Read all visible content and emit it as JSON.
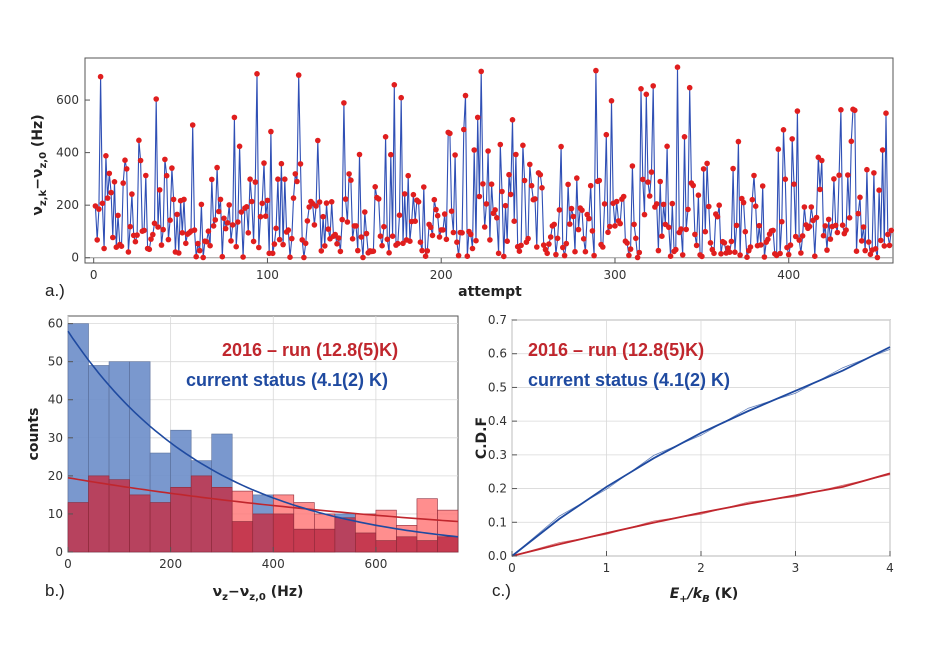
{
  "colors": {
    "series_2016": "#c0262d",
    "series_current": "#1f4aa0",
    "hist_2016_fill": "#c2334a",
    "hist_2016_light": "#ff7a7a",
    "hist_current_fill": "#6f8fca",
    "dot": "#e01e1e",
    "grid": "#d8d8d8"
  },
  "chart_data": [
    {
      "id": "a",
      "panel_label": "a.)",
      "type": "line",
      "series_name": "v_z,k - v_z,0 per attempt",
      "xlabel": "attempt",
      "ylabel": "ν_{z,k}−ν_{z,0} (Hz)",
      "xlim": [
        -5,
        460
      ],
      "ylim": [
        -20,
        760
      ],
      "xticks": [
        "0",
        "100",
        "200",
        "300",
        "400"
      ],
      "yticks": [
        "0",
        "200",
        "400",
        "600"
      ],
      "n_points": 459,
      "y_max_observed": 730,
      "y_min_observed": 0
    },
    {
      "id": "b",
      "panel_label": "b.)",
      "type": "bar",
      "xlabel": "ν_z−ν_{z,0} (Hz)",
      "ylabel": "counts",
      "xlim": [
        0,
        760
      ],
      "ylim": [
        0,
        62
      ],
      "xticks": [
        "0",
        "200",
        "400",
        "600"
      ],
      "yticks": [
        "0",
        "10",
        "20",
        "30",
        "40",
        "50",
        "60"
      ],
      "bin_width": 40,
      "bin_starts": [
        0,
        40,
        80,
        120,
        160,
        200,
        240,
        280,
        320,
        360,
        400,
        440,
        480,
        520,
        560,
        600,
        640,
        680,
        720
      ],
      "series": [
        {
          "name": "2016 – run (12.8(5)K)",
          "values": [
            13,
            20,
            19,
            15,
            13,
            17,
            20,
            17,
            16,
            10,
            15,
            13,
            10,
            9,
            10,
            11,
            7,
            14,
            11
          ]
        },
        {
          "name": "current status (4.1(2) K)",
          "values": [
            60,
            49,
            50,
            50,
            26,
            32,
            24,
            31,
            8,
            15,
            10,
            6,
            6,
            10,
            5,
            3,
            4,
            3,
            4
          ]
        }
      ],
      "fits": [
        {
          "name": "2016 – run (12.8(5)K)",
          "start": 19.5,
          "end": 8,
          "x_end": 760
        },
        {
          "name": "current status (4.1(2) K)",
          "start": 58,
          "end": 4,
          "x_end": 760
        }
      ],
      "legend": [
        "2016 – run (12.8(5)K)",
        "current status (4.1(2) K)"
      ]
    },
    {
      "id": "c",
      "panel_label": "c.)",
      "type": "line",
      "xlabel": "E₊/k_B (K)",
      "ylabel": "C.D.F",
      "xlim": [
        0,
        4
      ],
      "ylim": [
        0,
        0.7
      ],
      "xticks": [
        "0",
        "1",
        "2",
        "3",
        "4"
      ],
      "yticks": [
        "0.0",
        "0.1",
        "0.2",
        "0.3",
        "0.4",
        "0.5",
        "0.6",
        "0.7"
      ],
      "series": [
        {
          "name": "2016 – run (12.8(5)K)",
          "x": [
            0,
            0.5,
            1,
            1.5,
            2,
            2.5,
            3,
            3.5,
            4
          ],
          "y": [
            0,
            0.035,
            0.068,
            0.099,
            0.128,
            0.155,
            0.18,
            0.205,
            0.245
          ]
        },
        {
          "name": "current status (4.1(2) K)",
          "x": [
            0,
            0.5,
            1,
            1.5,
            2,
            2.5,
            3,
            3.5,
            4
          ],
          "y": [
            0,
            0.11,
            0.205,
            0.29,
            0.365,
            0.43,
            0.49,
            0.55,
            0.62
          ]
        }
      ],
      "legend": [
        "2016 – run (12.8(5)K)",
        "current status (4.1(2) K)"
      ]
    }
  ]
}
